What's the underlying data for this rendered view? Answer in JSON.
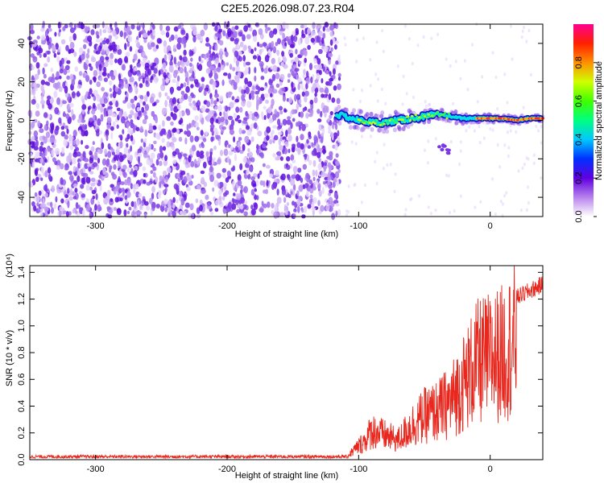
{
  "figure_title": "C2E5.2026.098.07.23.R04",
  "chart_data": [
    {
      "type": "heatmap",
      "xlabel": "Height of straight line (km)",
      "ylabel": "Frequency (Hz)",
      "xlim": [
        -350,
        40
      ],
      "ylim": [
        -50,
        50
      ],
      "xticks": [
        -300,
        -200,
        -100,
        0
      ],
      "yticks": [
        -40,
        -20,
        0,
        20,
        40
      ],
      "colorbar": {
        "label": "Normalized spectral amplitude",
        "range": [
          0,
          1
        ],
        "ticks": [
          0.0,
          0.2,
          0.4,
          0.6,
          0.8
        ]
      },
      "features": {
        "noise_region_x": [
          -350,
          -118
        ],
        "signal_track": [
          {
            "x": -118,
            "y": 3
          },
          {
            "x": -110,
            "y": 2
          },
          {
            "x": -100,
            "y": 0
          },
          {
            "x": -90,
            "y": -1
          },
          {
            "x": -80,
            "y": -1
          },
          {
            "x": -70,
            "y": 0
          },
          {
            "x": -60,
            "y": 1
          },
          {
            "x": -50,
            "y": 2
          },
          {
            "x": -40,
            "y": 3
          },
          {
            "x": -30,
            "y": 2
          },
          {
            "x": -20,
            "y": 1
          },
          {
            "x": -10,
            "y": 1
          },
          {
            "x": 0,
            "y": 1
          },
          {
            "x": 10,
            "y": 1
          },
          {
            "x": 20,
            "y": 0
          },
          {
            "x": 30,
            "y": 1
          },
          {
            "x": 40,
            "y": 1
          }
        ],
        "secondary_blob": {
          "x": -35,
          "y": -15
        }
      }
    },
    {
      "type": "line",
      "xlabel": "Height of straight line (km)",
      "ylabel": "SNR (10 * v/v)",
      "yscale_label": "(x10⁴)",
      "xlim": [
        -350,
        40
      ],
      "ylim": [
        0,
        1.45
      ],
      "xticks": [
        -300,
        -200,
        -100,
        0
      ],
      "yticks": [
        0.0,
        0.2,
        0.4,
        0.6,
        0.8,
        1.0,
        1.2,
        1.4
      ],
      "series": [
        {
          "color": "#e8281e",
          "envelope": [
            {
              "x": -350,
              "y": 0.02
            },
            {
              "x": -110,
              "y": 0.02
            },
            {
              "x": -105,
              "y": 0.08
            },
            {
              "x": -95,
              "y": 0.2
            },
            {
              "x": -90,
              "y": 0.3
            },
            {
              "x": -80,
              "y": 0.25
            },
            {
              "x": -70,
              "y": 0.2
            },
            {
              "x": -60,
              "y": 0.35
            },
            {
              "x": -50,
              "y": 0.45
            },
            {
              "x": -40,
              "y": 0.5
            },
            {
              "x": -30,
              "y": 0.6
            },
            {
              "x": -20,
              "y": 0.8
            },
            {
              "x": -10,
              "y": 1.0
            },
            {
              "x": 0,
              "y": 1.05
            },
            {
              "x": 10,
              "y": 1.1
            },
            {
              "x": 20,
              "y": 1.25
            },
            {
              "x": 30,
              "y": 1.3
            },
            {
              "x": 40,
              "y": 1.35
            }
          ]
        }
      ]
    }
  ]
}
